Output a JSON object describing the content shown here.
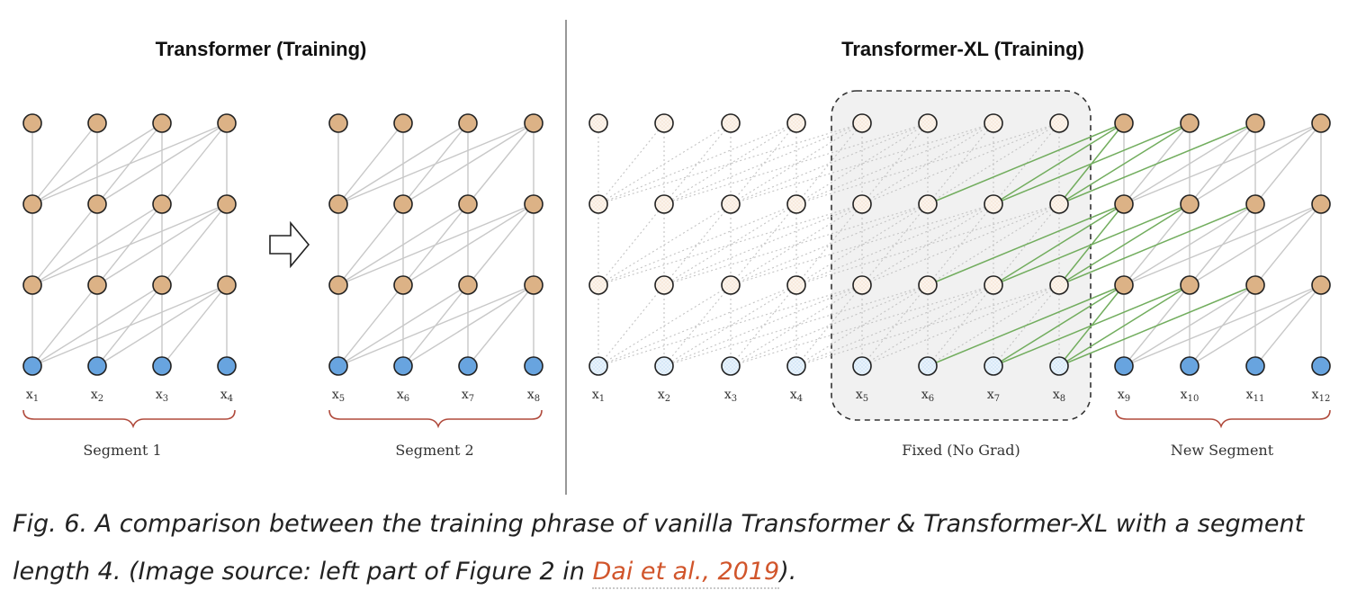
{
  "figure": {
    "left_panel": {
      "title": "Transformer (Training)",
      "segments": [
        {
          "label": "Segment 1",
          "tokens": [
            "x1",
            "x2",
            "x3",
            "x4"
          ]
        },
        {
          "label": "Segment 2",
          "tokens": [
            "x5",
            "x6",
            "x7",
            "x8"
          ]
        }
      ]
    },
    "right_panel": {
      "title": "Transformer-XL (Training)",
      "tokens": [
        "x1",
        "x2",
        "x3",
        "x4",
        "x5",
        "x6",
        "x7",
        "x8",
        "x9",
        "x10",
        "x11",
        "x12"
      ],
      "fixed_label": "Fixed (No Grad)",
      "new_segment_label": "New Segment"
    },
    "colors": {
      "hidden_node": "#dcb286",
      "input_node": "#68a4df",
      "faded_hidden": "#f8eadc",
      "faded_input": "#d6e8f8",
      "connection": "#c8c8c8",
      "dotted_connection": "#c4c4c4",
      "green_connection": "#72ad5e",
      "fixed_box_fill": "#f1f1f1",
      "brace": "#b04a3c"
    }
  },
  "caption": {
    "text_before_link": "Fig. 6. A comparison between the training phrase of vanilla Transformer & Transformer-XL with a segment length 4. (Image source: left part of Figure 2 in ",
    "link_text": "Dai et al., 2019",
    "text_after_link": ")."
  }
}
